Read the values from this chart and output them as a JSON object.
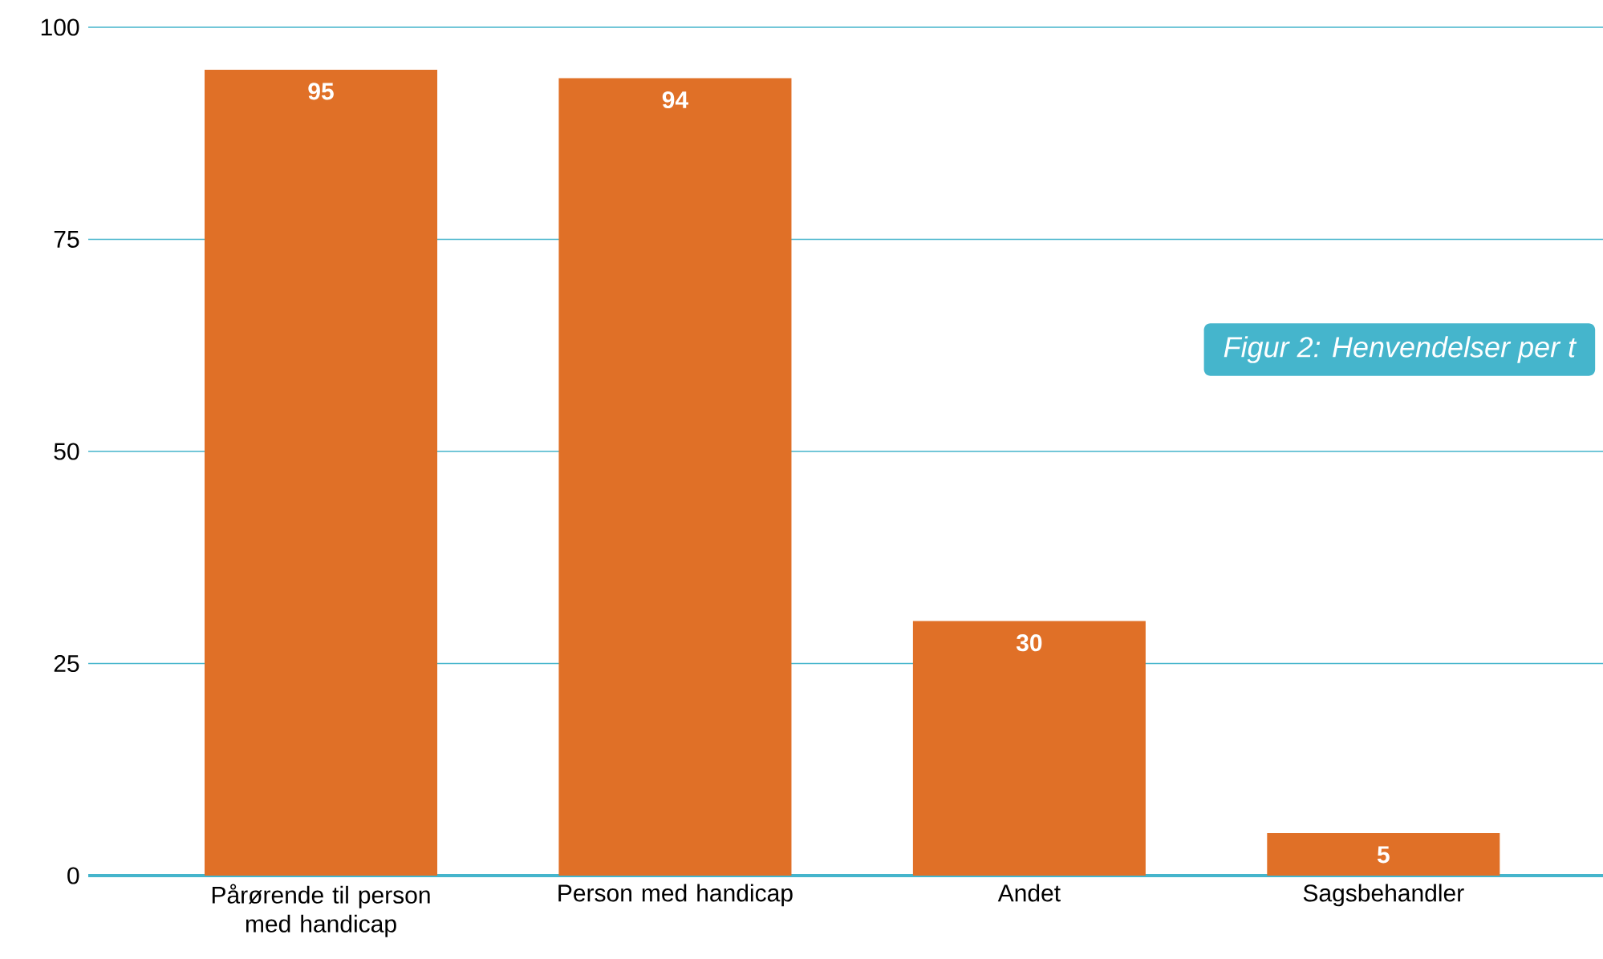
{
  "chart_data": {
    "type": "bar",
    "categories": [
      "Pårørende til person med handicap",
      "Person med handicap",
      "Andet",
      "Sagsbehandler"
    ],
    "values": [
      95,
      94,
      30,
      5
    ],
    "color": "#e07027",
    "ylim": [
      0,
      100
    ],
    "yticks": [
      0,
      25,
      50,
      75,
      100
    ],
    "grid": "y",
    "data_labels": true,
    "annotations": [
      "Figur 2: Henvendelser per t"
    ]
  }
}
